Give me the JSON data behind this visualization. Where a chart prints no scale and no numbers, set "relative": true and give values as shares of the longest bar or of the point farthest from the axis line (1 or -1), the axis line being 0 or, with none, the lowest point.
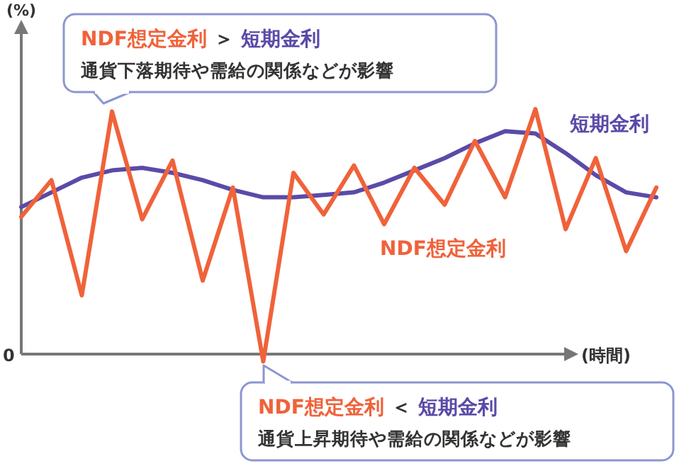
{
  "chart_data": {
    "type": "line",
    "relative": true,
    "xlabel": "(時間)",
    "marker": "none",
    "line_style": "solid",
    "categories": [
      null,
      null,
      null,
      null,
      null,
      null,
      null,
      null,
      null,
      null,
      null,
      null,
      null,
      null,
      null,
      null,
      null,
      null,
      null,
      null,
      null,
      null
    ],
    "series": [
      {
        "name": "NDF想定金利",
        "color": "#f0623a",
        "values": [
          0.56,
          0.71,
          0.24,
          0.99,
          0.55,
          0.79,
          0.3,
          0.68,
          -0.03,
          0.74,
          0.57,
          0.77,
          0.53,
          0.76,
          0.61,
          0.87,
          0.64,
          1,
          0.51,
          0.8,
          0.42,
          0.68
        ]
      },
      {
        "name": "短期金利",
        "color": "#5b4aa8",
        "values": [
          0.6,
          0.66,
          0.72,
          0.75,
          0.76,
          0.74,
          0.71,
          0.67,
          0.64,
          0.64,
          0.65,
          0.66,
          0.7,
          0.75,
          0.8,
          0.86,
          0.91,
          0.9,
          0.82,
          0.73,
          0.66,
          0.64
        ]
      }
    ],
    "annotations": [
      "0",
      "NDF想定金利",
      "＞",
      "短期金利",
      "通貨下落期待や需給の関係などが影響",
      "NDF想定金利",
      "＜",
      "短期金利",
      "通貨上昇期待や需給の関係などが影響",
      "(%)"
    ]
  }
}
